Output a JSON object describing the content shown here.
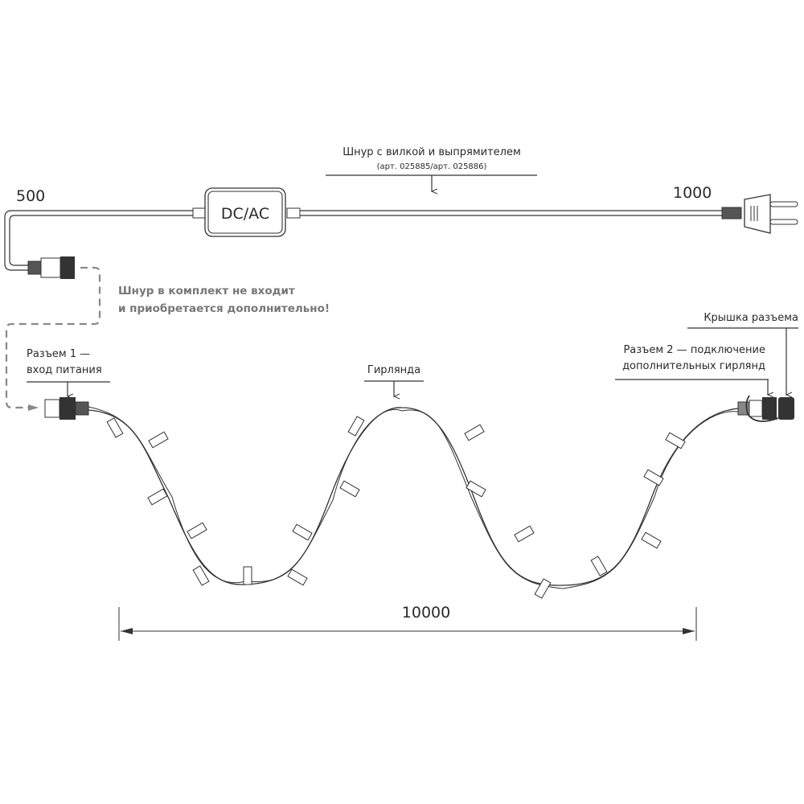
{
  "cord": {
    "title": "Шнур с вилкой и выпрямителем",
    "article": "(арт. 025885/арт. 025886)",
    "converter_label": "DC/AC",
    "length_left": "500",
    "length_right": "1000"
  },
  "warning": {
    "line1": "Шнур в комплект не входит",
    "line2": "и приобретается дополнительно!",
    "color": "#777777"
  },
  "connector1": {
    "line1": "Разъем 1 —",
    "line2": "вход питания"
  },
  "garland": {
    "label": "Гирлянда"
  },
  "connector2": {
    "line1": "Разъем 2 — подключение",
    "line2": "дополнительных гирлянд"
  },
  "cap": {
    "label": "Крышка разъема"
  },
  "dimension": {
    "length": "10000"
  }
}
